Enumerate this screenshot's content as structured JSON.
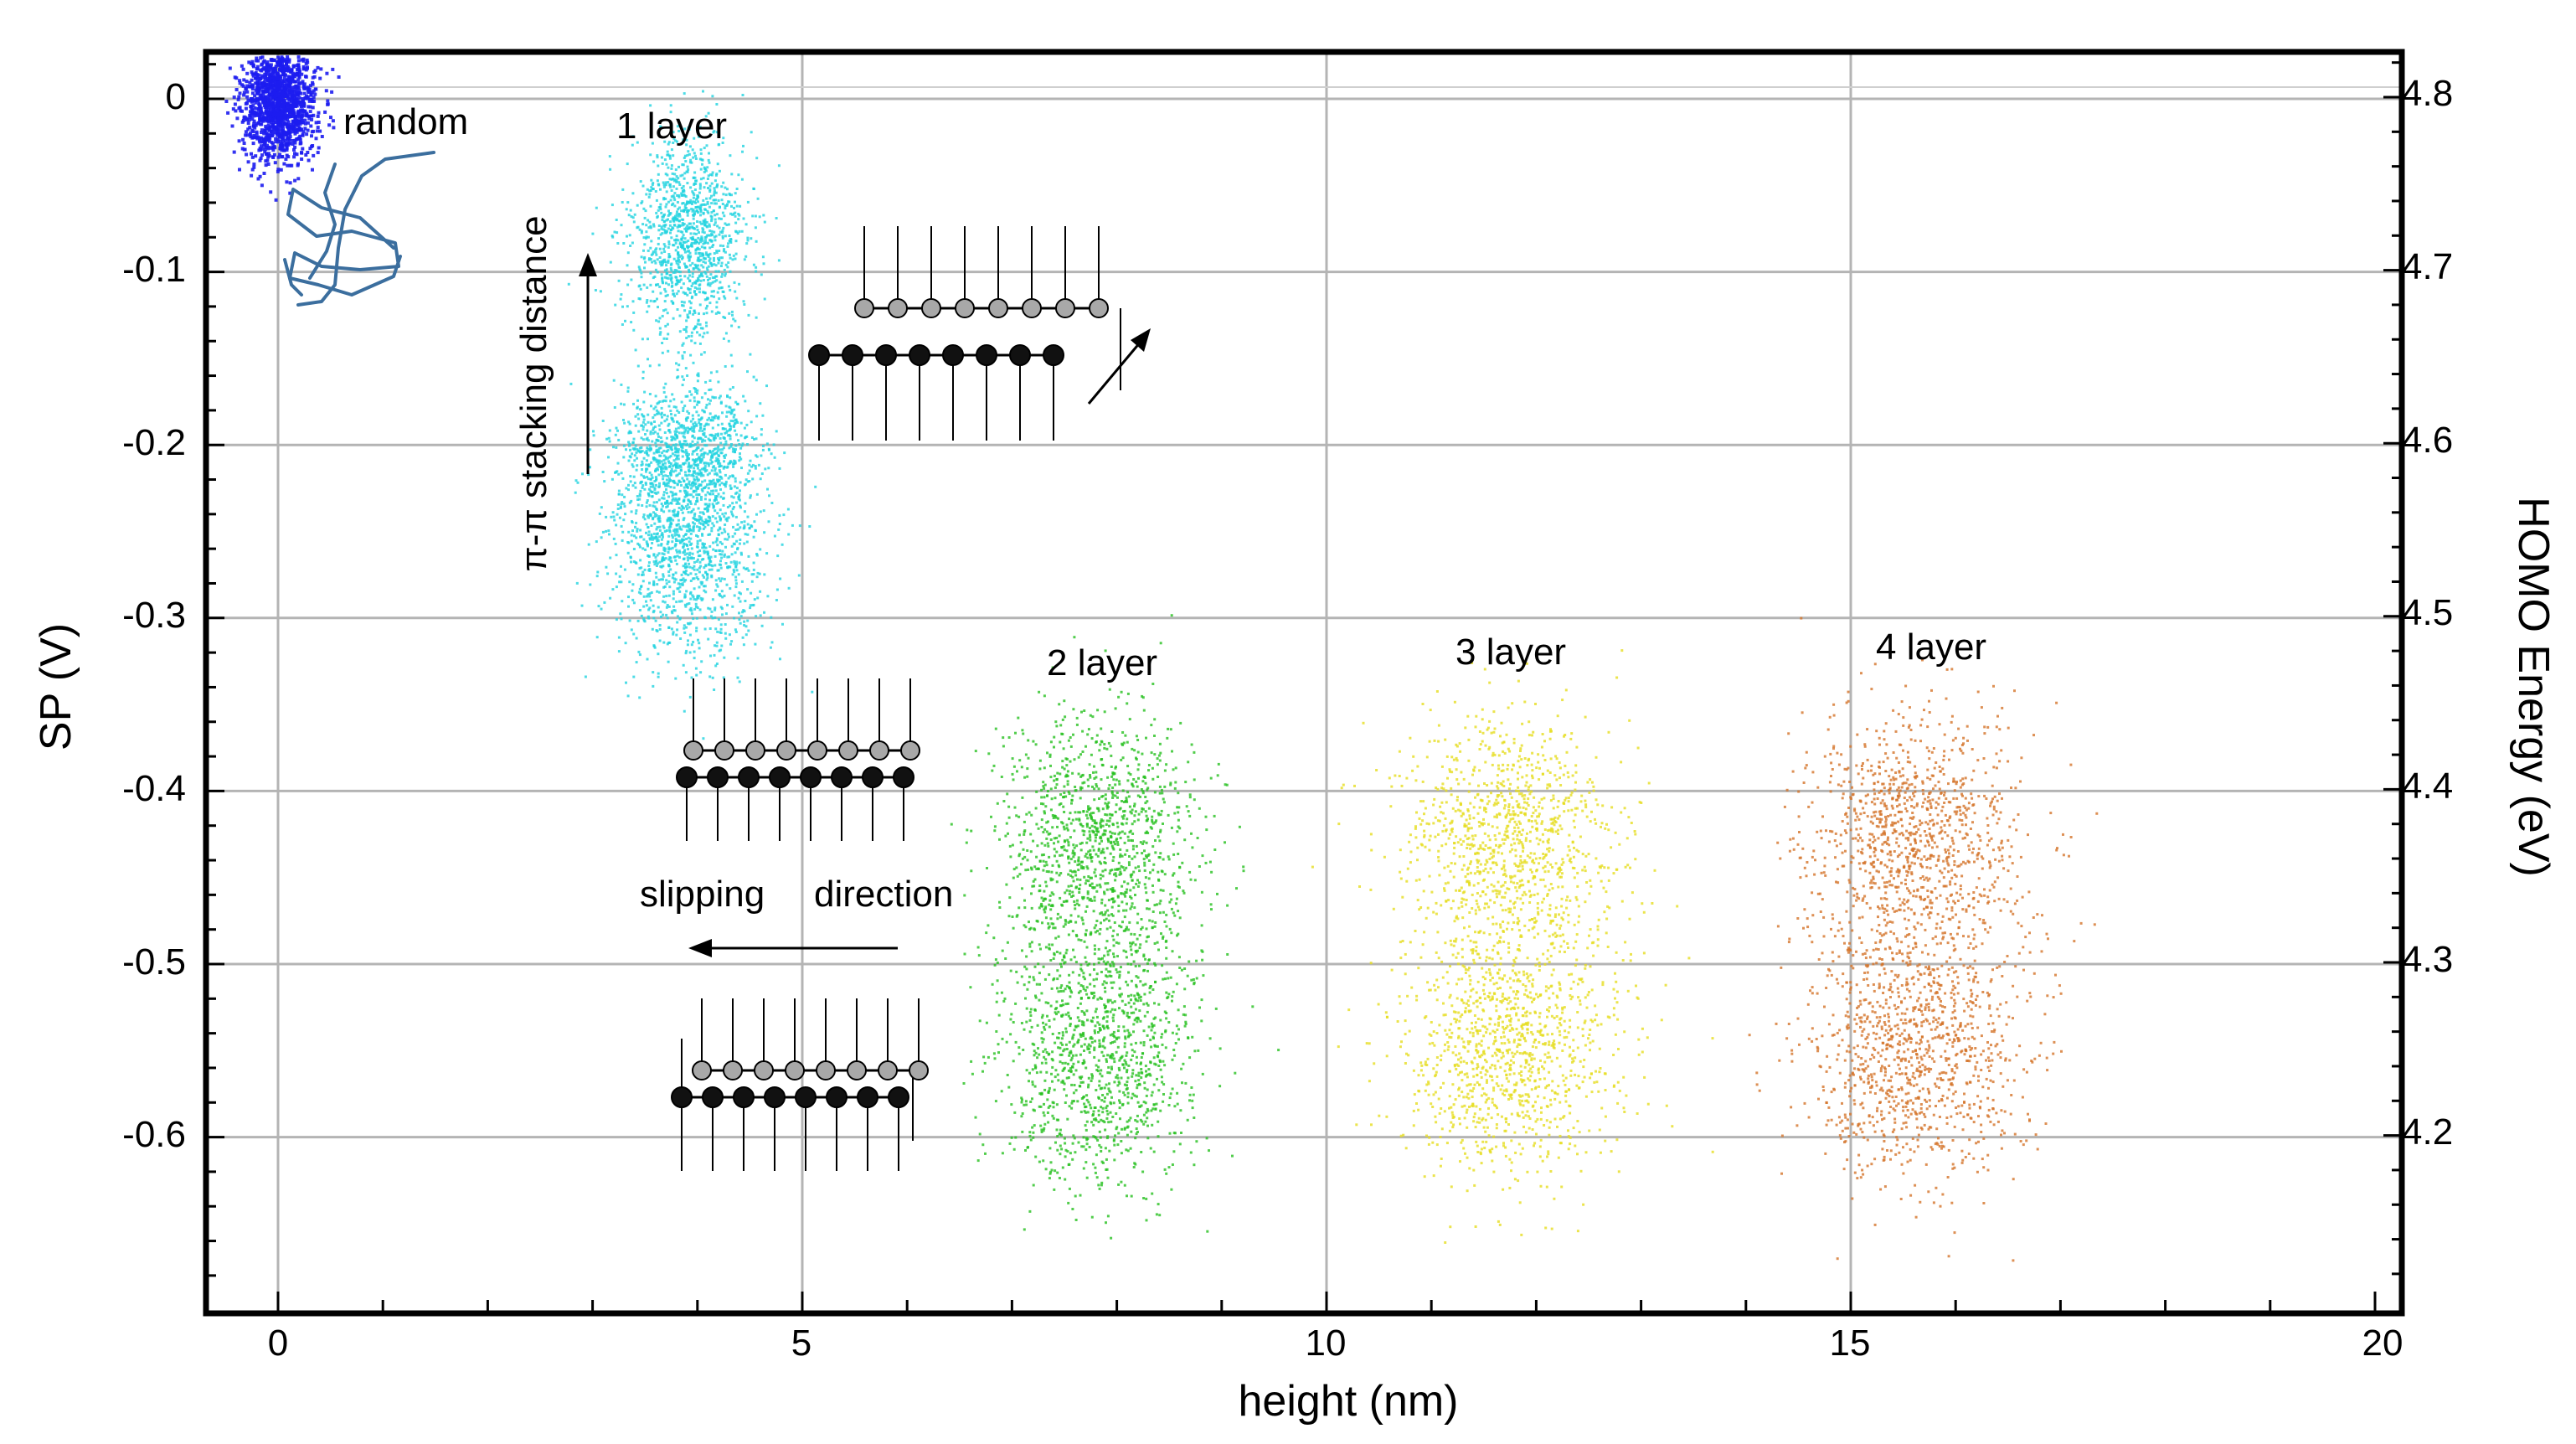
{
  "chart_data": {
    "type": "scatter",
    "title": "",
    "xlabel": "height (nm)",
    "ylabel": "SP (V)",
    "y2label": "HOMO Energy (eV)",
    "xlim": [
      -0.6,
      20
    ],
    "ylim": [
      -0.7,
      0.025
    ],
    "y2lim": [
      4.105,
      4.83
    ],
    "xticks": [
      0,
      5,
      10,
      15,
      20
    ],
    "xtick_labels": [
      "0",
      "5",
      "10",
      "15",
      "20"
    ],
    "yticks": [
      0,
      -0.1,
      -0.2,
      -0.3,
      -0.4,
      -0.5,
      -0.6
    ],
    "ytick_labels": [
      "0",
      "-0.1",
      "-0.2",
      "-0.3",
      "-0.4",
      "-0.5",
      "-0.6"
    ],
    "y2ticks": [
      4.8,
      4.7,
      4.6,
      4.5,
      4.4,
      4.3,
      4.2
    ],
    "y2tick_labels": [
      "4.8",
      "4.7",
      "4.6",
      "4.5",
      "4.4",
      "4.3",
      "4.2"
    ],
    "grid": true,
    "clusters": [
      {
        "name": "random",
        "color": "#1d1df0",
        "x_center": 0.0,
        "y_center": 0.0,
        "x_spread": 0.35,
        "y_spread": 0.035,
        "points": 1500
      },
      {
        "name": "1 layer",
        "color": "#22d3e0",
        "x_center": 3.9,
        "y_center": -0.08,
        "x_spread": 0.55,
        "y_spread": 0.06,
        "points": 1200
      },
      {
        "name": "1 layer",
        "color": "#22d3e0",
        "x_center": 3.9,
        "y_center": -0.2,
        "x_spread": 0.65,
        "y_spread": 0.035,
        "points": 700
      },
      {
        "name": "1 layer",
        "color": "#22d3e0",
        "x_center": 3.9,
        "y_center": -0.25,
        "x_spread": 0.75,
        "y_spread": 0.07,
        "points": 1500
      },
      {
        "name": "2 layer",
        "color": "#27c01f",
        "x_center": 7.8,
        "y_center": -0.43,
        "x_spread": 0.95,
        "y_spread": 0.075,
        "points": 1200
      },
      {
        "name": "2 layer",
        "color": "#27c01f",
        "x_center": 7.8,
        "y_center": -0.55,
        "x_spread": 0.95,
        "y_spread": 0.075,
        "points": 1200
      },
      {
        "name": "3 layer",
        "color": "#e6dd22",
        "x_center": 11.7,
        "y_center": -0.43,
        "x_spread": 1.05,
        "y_spread": 0.075,
        "points": 1100
      },
      {
        "name": "3 layer",
        "color": "#e6dd22",
        "x_center": 11.7,
        "y_center": -0.55,
        "x_spread": 1.05,
        "y_spread": 0.075,
        "points": 1100
      },
      {
        "name": "4 layer",
        "color": "#d4742a",
        "x_center": 15.6,
        "y_center": -0.43,
        "x_spread": 1.05,
        "y_spread": 0.075,
        "points": 1100
      },
      {
        "name": "4 layer",
        "color": "#d4742a",
        "x_center": 15.6,
        "y_center": -0.55,
        "x_spread": 1.05,
        "y_spread": 0.075,
        "points": 1100
      }
    ],
    "annotations": {
      "random": "random",
      "layer1": "1 layer",
      "layer2": "2 layer",
      "layer3": "3 layer",
      "layer4": "4 layer",
      "pi_stacking": "π-π stacking distance",
      "slipping_a": "slipping",
      "slipping_b": "direction"
    }
  }
}
